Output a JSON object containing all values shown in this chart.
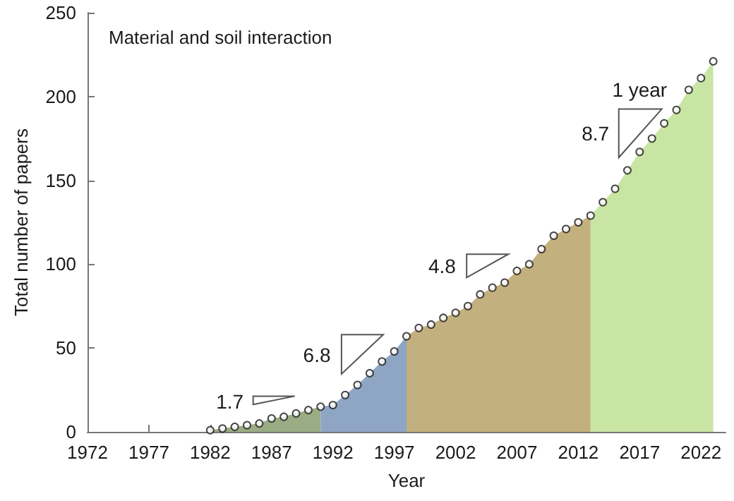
{
  "chart_data": {
    "type": "area",
    "title": "Material and soil interaction",
    "xlabel": "Year",
    "ylabel": "Total number of papers",
    "xlim": [
      1972,
      2024
    ],
    "xticks": [
      1972,
      1977,
      1982,
      1987,
      1992,
      1997,
      2002,
      2007,
      2012,
      2017,
      2022
    ],
    "ylim": [
      0,
      250
    ],
    "yticks": [
      0,
      50,
      100,
      150,
      200,
      250
    ],
    "grid": false,
    "series": [
      {
        "color": "#9aac84",
        "x": [
          1982,
          1983,
          1984,
          1985,
          1986,
          1987,
          1988,
          1989,
          1990,
          1991
        ],
        "values": [
          1,
          2,
          3,
          4,
          5,
          8,
          9,
          11,
          13,
          15
        ]
      },
      {
        "color": "#8ea5c4",
        "x": [
          1991,
          1992,
          1993,
          1994,
          1995,
          1996,
          1997,
          1998
        ],
        "values": [
          15,
          16,
          22,
          28,
          35,
          42,
          48,
          57
        ]
      },
      {
        "color": "#c2b07e",
        "x": [
          1998,
          1999,
          2000,
          2001,
          2002,
          2003,
          2004,
          2005,
          2006,
          2007,
          2008,
          2009,
          2010,
          2011,
          2012,
          2013
        ],
        "values": [
          57,
          62,
          64,
          68,
          71,
          75,
          82,
          86,
          89,
          96,
          100,
          109,
          117,
          121,
          125,
          129
        ]
      },
      {
        "color": "#c9e5a4",
        "x": [
          2013,
          2014,
          2015,
          2016,
          2017,
          2018,
          2019,
          2020,
          2021,
          2022,
          2023
        ],
        "values": [
          129,
          137,
          145,
          156,
          167,
          175,
          184,
          192,
          204,
          211,
          221
        ]
      },
      {
        "type": "scatter",
        "marker": "circle",
        "color": "#1a1a1a",
        "x": [
          1982,
          1983,
          1984,
          1985,
          1986,
          1987,
          1988,
          1989,
          1990,
          1991,
          1992,
          1993,
          1994,
          1995,
          1996,
          1997,
          1998,
          1999,
          2000,
          2001,
          2002,
          2003,
          2004,
          2005,
          2006,
          2007,
          2008,
          2009,
          2010,
          2011,
          2012,
          2013,
          2014,
          2015,
          2016,
          2017,
          2018,
          2019,
          2020,
          2021,
          2022,
          2023
        ],
        "values": [
          1,
          2,
          3,
          4,
          5,
          8,
          9,
          11,
          13,
          15,
          16,
          22,
          28,
          35,
          42,
          48,
          57,
          62,
          64,
          68,
          71,
          75,
          82,
          86,
          89,
          96,
          100,
          109,
          117,
          121,
          125,
          129,
          137,
          145,
          156,
          167,
          175,
          184,
          192,
          204,
          211,
          221
        ]
      }
    ],
    "annotations": [
      "1.7",
      "6.8",
      "4.8",
      "8.7",
      "1 year"
    ]
  }
}
